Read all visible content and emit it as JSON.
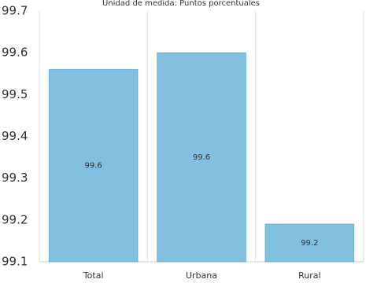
{
  "chart_data": {
    "type": "bar",
    "title": "",
    "subtitle": "Unidad de medida: Puntos porcentuales",
    "xlabel": "",
    "ylabel": "",
    "categories": [
      "Total",
      "Urbana",
      "Rural"
    ],
    "values": [
      99.56,
      99.6,
      99.19
    ],
    "data_labels": [
      "99.6",
      "99.6",
      "99.2"
    ],
    "ylim": [
      99.1,
      99.7
    ],
    "yticks": [
      99.1,
      99.2,
      99.3,
      99.4,
      99.5,
      99.6,
      99.7
    ],
    "ytick_labels": [
      "99.1",
      "99.2",
      "99.3",
      "99.4",
      "99.5",
      "99.6",
      "99.7"
    ],
    "grid": "vertical",
    "legend": "none",
    "bar_color": "#82c0e0",
    "bar_edge_color": "#6aaed6",
    "grid_color": "#dddddd",
    "axis_color": "#cccccc"
  }
}
